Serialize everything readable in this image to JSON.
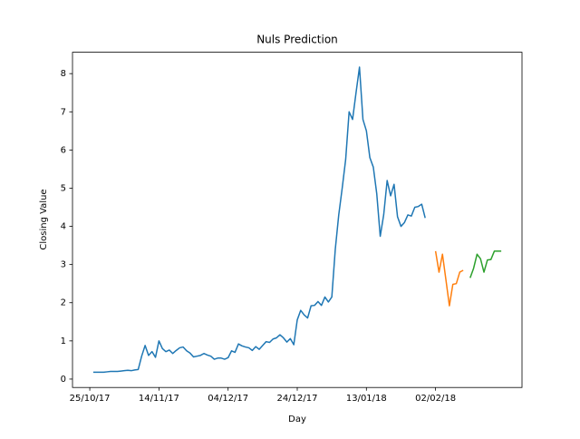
{
  "chart_data": {
    "type": "line",
    "title": "Nuls Prediction",
    "x_label": "Day",
    "y_label": "Closing Value",
    "xlim": [
      "2017-10-20",
      "2018-02-27"
    ],
    "xticks": [
      {
        "value": "2017-10-25",
        "label": "25/10/17"
      },
      {
        "value": "2017-11-14",
        "label": "14/11/17"
      },
      {
        "value": "2017-12-04",
        "label": "04/12/17"
      },
      {
        "value": "2017-12-24",
        "label": "24/12/17"
      },
      {
        "value": "2018-01-13",
        "label": "13/01/18"
      },
      {
        "value": "2018-02-02",
        "label": "02/02/18"
      }
    ],
    "ylim": [
      -0.22,
      8.56
    ],
    "yticks": [
      0,
      1,
      2,
      3,
      4,
      5,
      6,
      7,
      8
    ],
    "grid": false,
    "series": [
      {
        "color": "#1f77b4",
        "x": [
          "2017-10-26",
          "2017-10-27",
          "2017-10-28",
          "2017-10-29",
          "2017-10-30",
          "2017-10-31",
          "2017-11-01",
          "2017-11-02",
          "2017-11-03",
          "2017-11-04",
          "2017-11-05",
          "2017-11-06",
          "2017-11-07",
          "2017-11-08",
          "2017-11-09",
          "2017-11-10",
          "2017-11-11",
          "2017-11-12",
          "2017-11-13",
          "2017-11-14",
          "2017-11-15",
          "2017-11-16",
          "2017-11-17",
          "2017-11-18",
          "2017-11-19",
          "2017-11-20",
          "2017-11-21",
          "2017-11-22",
          "2017-11-23",
          "2017-11-24",
          "2017-11-25",
          "2017-11-26",
          "2017-11-27",
          "2017-11-28",
          "2017-11-29",
          "2017-11-30",
          "2017-12-01",
          "2017-12-02",
          "2017-12-03",
          "2017-12-04",
          "2017-12-05",
          "2017-12-06",
          "2017-12-07",
          "2017-12-08",
          "2017-12-09",
          "2017-12-10",
          "2017-12-11",
          "2017-12-12",
          "2017-12-13",
          "2017-12-14",
          "2017-12-15",
          "2017-12-16",
          "2017-12-17",
          "2017-12-18",
          "2017-12-19",
          "2017-12-20",
          "2017-12-21",
          "2017-12-22",
          "2017-12-23",
          "2017-12-24",
          "2017-12-25",
          "2017-12-26",
          "2017-12-27",
          "2017-12-28",
          "2017-12-29",
          "2017-12-30",
          "2017-12-31",
          "2018-01-01",
          "2018-01-02",
          "2018-01-03",
          "2018-01-04",
          "2018-01-05",
          "2018-01-06",
          "2018-01-07",
          "2018-01-08",
          "2018-01-09",
          "2018-01-10",
          "2018-01-11",
          "2018-01-12",
          "2018-01-13",
          "2018-01-14",
          "2018-01-15",
          "2018-01-16",
          "2018-01-17",
          "2018-01-18",
          "2018-01-19",
          "2018-01-20",
          "2018-01-21",
          "2018-01-22",
          "2018-01-23",
          "2018-01-24",
          "2018-01-25",
          "2018-01-26",
          "2018-01-27",
          "2018-01-28",
          "2018-01-29",
          "2018-01-30"
        ],
        "values": [
          0.18,
          0.18,
          0.18,
          0.18,
          0.19,
          0.2,
          0.2,
          0.2,
          0.21,
          0.22,
          0.23,
          0.22,
          0.24,
          0.25,
          0.6,
          0.88,
          0.62,
          0.72,
          0.57,
          1.0,
          0.8,
          0.72,
          0.76,
          0.67,
          0.75,
          0.82,
          0.84,
          0.74,
          0.68,
          0.58,
          0.6,
          0.62,
          0.67,
          0.63,
          0.6,
          0.52,
          0.55,
          0.55,
          0.52,
          0.56,
          0.74,
          0.7,
          0.92,
          0.87,
          0.84,
          0.82,
          0.75,
          0.85,
          0.78,
          0.88,
          0.98,
          0.96,
          1.05,
          1.08,
          1.16,
          1.08,
          0.97,
          1.06,
          0.9,
          1.55,
          1.8,
          1.68,
          1.6,
          1.92,
          1.93,
          2.03,
          1.93,
          2.15,
          2.02,
          2.15,
          3.4,
          4.3,
          5.0,
          5.75,
          7.0,
          6.8,
          7.5,
          8.17,
          6.8,
          6.5,
          5.8,
          5.55,
          4.85,
          3.74,
          4.3,
          5.2,
          4.8,
          5.1,
          4.25,
          4.0,
          4.1,
          4.3,
          4.27,
          4.5,
          4.52,
          4.58,
          4.22
        ]
      },
      {
        "color": "#ff7f0e",
        "x": [
          "2018-02-02",
          "2018-02-03",
          "2018-02-04",
          "2018-02-05",
          "2018-02-06",
          "2018-02-07",
          "2018-02-08",
          "2018-02-09",
          "2018-02-10"
        ],
        "values": [
          3.35,
          2.8,
          3.27,
          2.6,
          1.92,
          2.48,
          2.5,
          2.8,
          2.85
        ]
      },
      {
        "color": "#2ca02c",
        "x": [
          "2018-02-12",
          "2018-02-13",
          "2018-02-14",
          "2018-02-15",
          "2018-02-16",
          "2018-02-17",
          "2018-02-18",
          "2018-02-19",
          "2018-02-20",
          "2018-02-21"
        ],
        "values": [
          2.65,
          2.9,
          3.27,
          3.15,
          2.8,
          3.12,
          3.13,
          3.35,
          3.35,
          3.35
        ]
      }
    ]
  }
}
